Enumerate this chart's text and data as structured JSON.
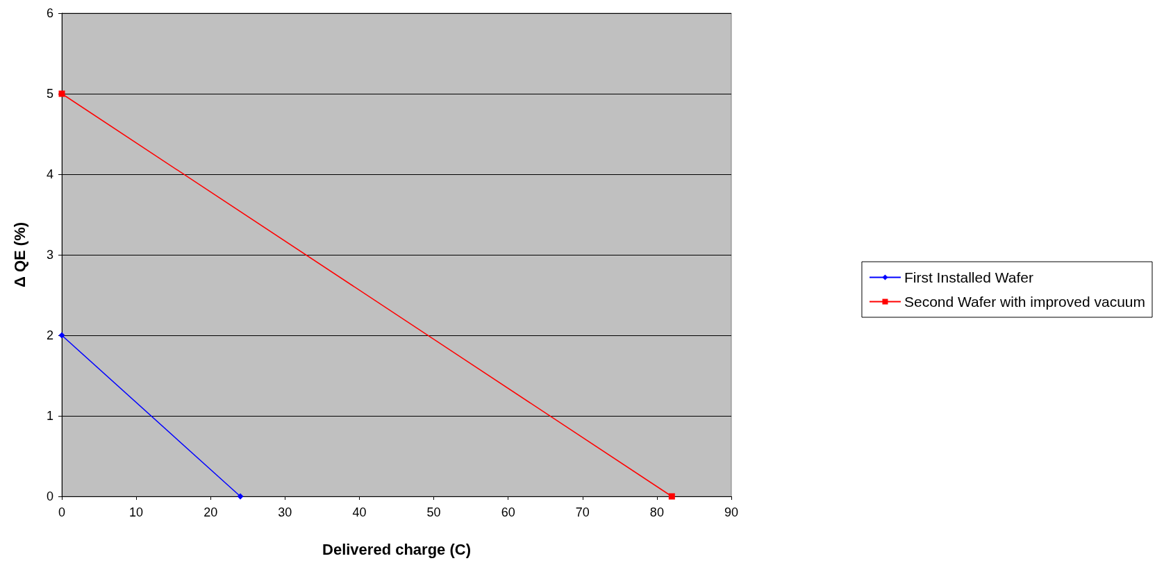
{
  "chart_data": {
    "type": "line",
    "xlabel": "Delivered charge (C)",
    "ylabel": "Δ QE (%)",
    "series": [
      {
        "name": "First Installed Wafer",
        "color": "#0000ff",
        "marker": "diamond",
        "x": [
          0,
          24
        ],
        "values": [
          2,
          0
        ]
      },
      {
        "name": "Second Wafer with improved vacuum",
        "color": "#ff0000",
        "marker": "square",
        "x": [
          0,
          82
        ],
        "values": [
          5,
          0
        ]
      }
    ],
    "xlim": [
      0,
      90
    ],
    "xticks": [
      0,
      10,
      20,
      30,
      40,
      50,
      60,
      70,
      80,
      90
    ],
    "ylim": [
      0,
      6
    ],
    "yticks": [
      0,
      1,
      2,
      3,
      4,
      5,
      6
    ],
    "grid": "y",
    "legend": "right",
    "line_style": "solid"
  }
}
